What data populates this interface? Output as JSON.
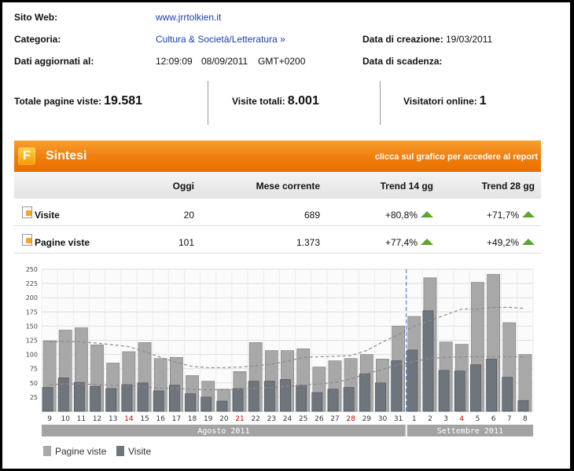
{
  "info": {
    "site_label": "Sito Web:",
    "site_value": "www.jrrtolkien.it",
    "category_label": "Categoria:",
    "category_value": "Cultura & Società/Letteratura »",
    "created_label": "Data di creazione:",
    "created_value": "19/03/2011",
    "updated_label": "Dati aggiornati al:",
    "updated_time": "12:09:09",
    "updated_date": "08/09/2011",
    "updated_tz": "GMT+0200",
    "expiry_label": "Data di scadenza:"
  },
  "stats": {
    "pageviews_label": "Totale pagine viste:",
    "pageviews_value": "19.581",
    "visits_label": "Visite totali:",
    "visits_value": "8.001",
    "online_label": "Visitatori online:",
    "online_value": "1"
  },
  "summary": {
    "logo_letter": "F",
    "title": "Sintesi",
    "report_link": "clicca sul grafico per accedere al report",
    "columns": [
      "Oggi",
      "Mese corrente",
      "Trend 14 gg",
      "Trend 28 gg"
    ],
    "rows": [
      {
        "label": "Visite",
        "today": "20",
        "month": "689",
        "trend14": "+80,8%",
        "trend28": "+71,7%"
      },
      {
        "label": "Pagine viste",
        "today": "101",
        "month": "1.373",
        "trend14": "+77,4%",
        "trend28": "+49,2%"
      }
    ]
  },
  "chart_data": {
    "type": "bar",
    "categories": [
      "9",
      "10",
      "11",
      "12",
      "13",
      "14",
      "15",
      "16",
      "17",
      "18",
      "19",
      "20",
      "21",
      "22",
      "23",
      "24",
      "25",
      "26",
      "27",
      "28",
      "29",
      "30",
      "31",
      "1",
      "2",
      "3",
      "4",
      "5",
      "6",
      "7",
      "8"
    ],
    "weekend_categories": [
      "14",
      "21",
      "28",
      "4"
    ],
    "series": [
      {
        "name": "Pagine viste",
        "values": [
          124,
          143,
          147,
          117,
          85,
          105,
          121,
          93,
          95,
          63,
          53,
          39,
          70,
          121,
          107,
          107,
          110,
          78,
          89,
          93,
          100,
          92,
          150,
          167,
          235,
          122,
          118,
          227,
          241,
          156,
          100
        ]
      },
      {
        "name": "Visite",
        "values": [
          42,
          59,
          51,
          44,
          40,
          47,
          50,
          36,
          46,
          31,
          25,
          18,
          40,
          53,
          53,
          56,
          46,
          33,
          39,
          42,
          66,
          50,
          89,
          108,
          177,
          72,
          71,
          82,
          92,
          60,
          19
        ]
      }
    ],
    "trend_lines": [
      {
        "of": "Pagine viste",
        "style": "dashed",
        "values": [
          122,
          123,
          122,
          120,
          117,
          114,
          105,
          95,
          86,
          79,
          77,
          77,
          78,
          80,
          83,
          88,
          95,
          96,
          97,
          98,
          107,
          122,
          135,
          150,
          160,
          170,
          180,
          180,
          183,
          183,
          181
        ]
      },
      {
        "of": "Visite",
        "style": "dashed",
        "values": [
          47,
          48,
          48,
          47,
          46,
          45,
          43,
          41,
          40,
          39,
          38,
          38,
          39,
          40,
          42,
          44,
          46,
          48,
          51,
          57,
          66,
          74,
          82,
          88,
          93,
          95,
          96,
          96,
          96,
          96,
          96
        ]
      }
    ],
    "ylim": [
      0,
      250
    ],
    "yticks": [
      25,
      50,
      75,
      100,
      125,
      150,
      175,
      200,
      225,
      250
    ],
    "month_labels": [
      {
        "label": "Agosto 2011",
        "from": "9",
        "to": "31"
      },
      {
        "label": "Settembre 2011",
        "from": "1",
        "to": "8"
      }
    ],
    "divider_between": [
      "31",
      "1"
    ],
    "grid": true,
    "legend_position": "bottom-left",
    "colors": {
      "pagine_viste": "#a8a8a8",
      "visite": "#6f757c",
      "weekend_label": "#cc0000",
      "month_band": "#a3a3a3",
      "divider": "#3d6fd1"
    }
  },
  "colors": {
    "accent_orange": "#ef7d0c",
    "link_blue": "#1a3fae",
    "trend_up": "#5aa52e"
  },
  "icons": {
    "logo": "f-logo-icon",
    "row": "document-plus-icon",
    "trend": "up-arrow-icon"
  }
}
